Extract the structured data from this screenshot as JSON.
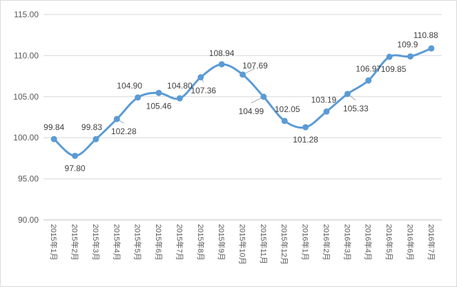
{
  "colors": {
    "series": "#5b9bd5",
    "grid": "#d9d9d9",
    "text": "#595959"
  },
  "chart_data": {
    "type": "line",
    "smooth": true,
    "markers": true,
    "title": "",
    "xlabel": "",
    "ylabel": "",
    "grid": "horizontal",
    "legend": "none",
    "ylim": [
      90,
      115
    ],
    "yticks": [
      "90.00",
      "95.00",
      "100.00",
      "105.00",
      "110.00",
      "115.00"
    ],
    "categories": [
      "2015年1月",
      "2015年2月",
      "2015年3月",
      "2015年4月",
      "2015年5月",
      "2015年6月",
      "2015年7月",
      "2015年8月",
      "2015年9月",
      "2015年10月",
      "2015年11月",
      "2015年12月",
      "2016年1月",
      "2016年2月",
      "2016年3月",
      "2016年4月",
      "2016年5月",
      "2016年6月",
      "2016年7月"
    ],
    "series": [
      {
        "name": "",
        "values": [
          99.84,
          97.8,
          99.83,
          102.28,
          104.9,
          105.46,
          104.8,
          107.36,
          108.94,
          107.69,
          104.99,
          102.05,
          101.28,
          103.19,
          105.33,
          106.97,
          109.85,
          109.9,
          110.88
        ],
        "labels": [
          "99.84",
          "97.80",
          "99.83",
          "102.28",
          "104.90",
          "105.46",
          "104.80",
          "107.36",
          "108.94",
          "107.69",
          "104.99",
          "102.05",
          "101.28",
          "103.19",
          "105.33",
          "106.97",
          "109.85",
          "109.9",
          "110.88"
        ]
      }
    ]
  }
}
